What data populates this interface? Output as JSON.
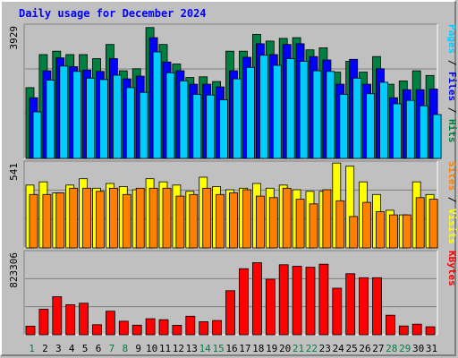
{
  "chart_data": {
    "type": "bar",
    "title": "Daily usage for December 2024",
    "x": [
      1,
      2,
      3,
      4,
      5,
      6,
      7,
      8,
      9,
      10,
      11,
      12,
      13,
      14,
      15,
      16,
      17,
      18,
      19,
      20,
      21,
      22,
      23,
      24,
      25,
      26,
      27,
      28,
      29,
      30,
      31
    ],
    "weekend_days": [
      1,
      7,
      8,
      14,
      15,
      21,
      22,
      28,
      29
    ],
    "panels": [
      {
        "name": "hits-files-pages",
        "ymax_label": "3929",
        "ymax": 3929,
        "right_label_parts": [
          {
            "text": "Pages",
            "color": "#00ccff"
          },
          {
            "text": " / ",
            "color": "#000000"
          },
          {
            "text": "Files",
            "color": "#0000ff"
          },
          {
            "text": " / ",
            "color": "#000000"
          },
          {
            "text": "Hits",
            "color": "#008040"
          }
        ],
        "series": [
          {
            "name": "Hits",
            "color": "#008040",
            "values": [
              2100,
              3080,
              3180,
              3080,
              3080,
              2960,
              3380,
              2600,
              2660,
              3880,
              3380,
              2800,
              2400,
              2420,
              2280,
              3180,
              3180,
              3680,
              3480,
              3560,
              3580,
              3220,
              3280,
              2560,
              2880,
              2560,
              3020,
              2200,
              2300,
              2600,
              2460
            ]
          },
          {
            "name": "Files",
            "color": "#0000ff",
            "values": [
              1800,
              2600,
              2980,
              2720,
              2620,
              2580,
              2960,
              2360,
              2440,
              3580,
              2860,
              2600,
              2200,
              2200,
              2120,
              2600,
              3000,
              3400,
              3080,
              3380,
              3400,
              3020,
              2920,
              2200,
              2940,
              2200,
              2660,
              1800,
              2040,
              2040,
              2060
            ]
          },
          {
            "name": "Pages",
            "color": "#00ccff",
            "values": [
              1380,
              2320,
              2740,
              2580,
              2380,
              2340,
              2470,
              2100,
              1960,
              3160,
              2540,
              2300,
              1900,
              1880,
              1740,
              2360,
              2700,
              3060,
              2760,
              2960,
              2880,
              2600,
              2580,
              1900,
              2380,
              1920,
              2260,
              1620,
              1720,
              1560,
              1300
            ]
          }
        ]
      },
      {
        "name": "visits-sites",
        "ymax_label": "541",
        "ymax": 541,
        "right_label_parts": [
          {
            "text": "Sites",
            "color": "#ff8000"
          },
          {
            "text": " / ",
            "color": "#000000"
          },
          {
            "text": "Visits",
            "color": "#ffff00"
          }
        ],
        "series": [
          {
            "name": "Visits",
            "color": "#ffff00",
            "values": [
              400,
              420,
              350,
              400,
              440,
              380,
              410,
              390,
              370,
              440,
              420,
              400,
              360,
              450,
              390,
              370,
              380,
              410,
              380,
              400,
              370,
              360,
              360,
              540,
              520,
              420,
              340,
              240,
              210,
              420,
              340
            ]
          },
          {
            "name": "Sites",
            "color": "#ff8000",
            "values": [
              340,
              340,
              350,
              380,
              380,
              360,
              380,
              340,
              380,
              380,
              380,
              330,
              340,
              380,
              340,
              350,
              370,
              330,
              320,
              380,
              310,
              280,
              370,
              300,
              200,
              290,
              230,
              210,
              210,
              320,
              310
            ]
          }
        ]
      },
      {
        "name": "kbytes",
        "ymax_label": "823306",
        "ymax": 823306,
        "right_label_parts": [
          {
            "text": "KBytes",
            "color": "#ff0000"
          }
        ],
        "series": [
          {
            "name": "KBytes",
            "color": "#ff0000",
            "values": [
              86000,
              255000,
              380000,
              300000,
              315000,
              100000,
              235000,
              135000,
              96000,
              160000,
              150000,
              95000,
              185000,
              130000,
              142000,
              440000,
              660000,
              720000,
              555000,
              700000,
              685000,
              675000,
              705000,
              465000,
              610000,
              570000,
              570000,
              195000,
              88000,
              106000,
              80000
            ]
          }
        ]
      }
    ]
  }
}
